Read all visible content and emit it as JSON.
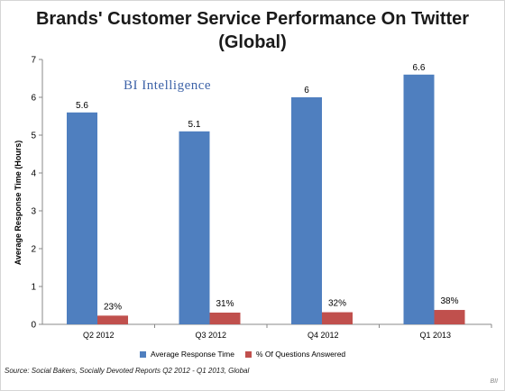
{
  "title_line1": "Brands' Customer Service Performance On Twitter",
  "title_line2": "(Global)",
  "watermark": "BI Intelligence",
  "source": "Source: Social Bakers, Socially Devoted Reports Q2 2012 - Q1 2013, Global",
  "brand": "BII",
  "colors": {
    "series1": "#4f7fbf",
    "series2": "#c0504d"
  },
  "chart_data": {
    "type": "bar",
    "title": "Brands' Customer Service Performance On Twitter (Global)",
    "ylabel": "Average Response Time (Hours)",
    "xlabel": "",
    "ylim": [
      0,
      7
    ],
    "yticks": [
      "0",
      "1",
      "2",
      "3",
      "4",
      "5",
      "6",
      "7"
    ],
    "categories": [
      "Q2 2012",
      "Q3 2012",
      "Q4 2012",
      "Q1 2013"
    ],
    "legend_position": "bottom",
    "grid": false,
    "series": [
      {
        "name": "Average Response Time",
        "values": [
          5.6,
          5.1,
          6,
          6.6
        ],
        "labels": [
          "5.6",
          "5.1",
          "6",
          "6.6"
        ]
      },
      {
        "name": "% Of Questions Answered",
        "values": [
          0.23,
          0.31,
          0.32,
          0.38
        ],
        "labels": [
          "23%",
          "31%",
          "32%",
          "38%"
        ]
      }
    ]
  }
}
